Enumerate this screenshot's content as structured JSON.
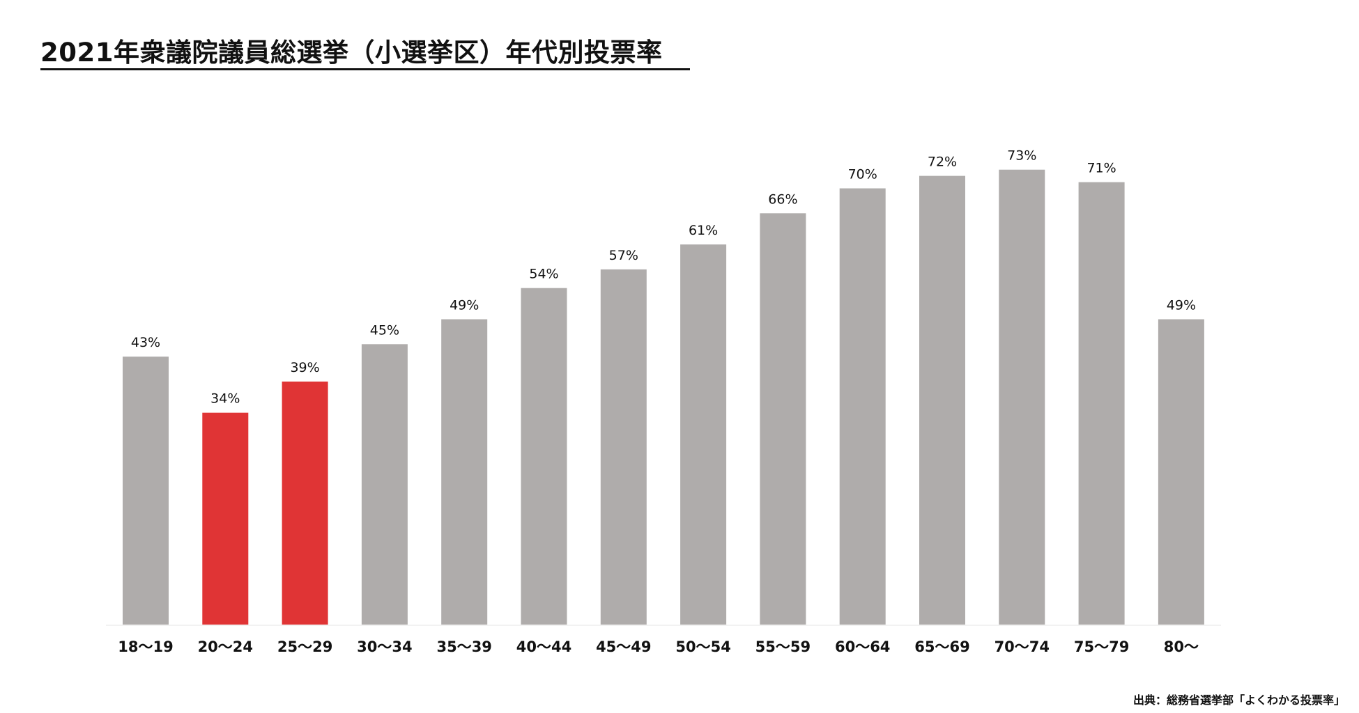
{
  "chart_data": {
    "type": "bar",
    "title": "2021年衆議院議員総選挙（小選挙区）年代別投票率",
    "categories": [
      "18〜19",
      "20〜24",
      "25〜29",
      "30〜34",
      "35〜39",
      "40〜44",
      "45〜49",
      "50〜54",
      "55〜59",
      "60〜64",
      "65〜69",
      "70〜74",
      "75〜79",
      "80〜"
    ],
    "values": [
      43,
      34,
      39,
      45,
      49,
      54,
      57,
      61,
      66,
      70,
      72,
      73,
      71,
      49
    ],
    "data_labels": [
      "43%",
      "34%",
      "39%",
      "45%",
      "49%",
      "54%",
      "57%",
      "61%",
      "66%",
      "70%",
      "72%",
      "73%",
      "71%",
      "49%"
    ],
    "highlighted_categories": [
      "20〜24",
      "25〜29"
    ],
    "xlabel": "",
    "ylabel": "",
    "grid": false,
    "legend": "none",
    "colors": {
      "default_bar": "#AFACAB",
      "highlight_bar": "#E03435",
      "text": "#111111",
      "baseline": "#F2F2F2"
    }
  },
  "source_note": "出典：総務省選挙部「よくわかる投票率」"
}
